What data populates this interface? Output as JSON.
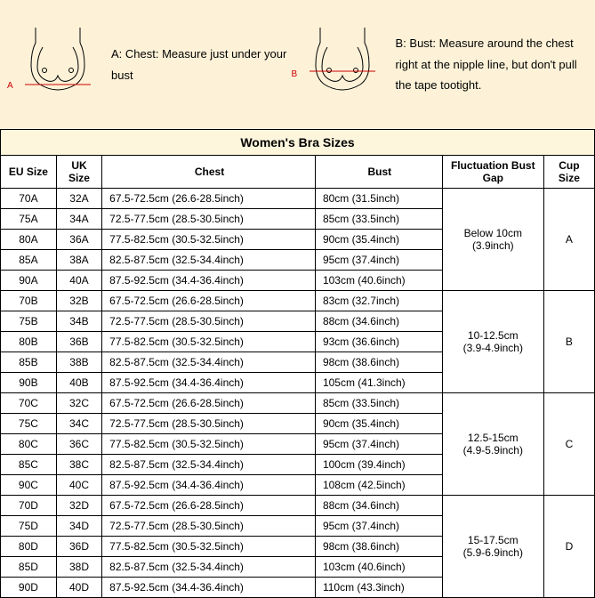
{
  "header": {
    "instruction_a_label": "A: Chest:",
    "instruction_a_text": "Measure just under your bust",
    "instruction_b_label": "B: Bust:",
    "instruction_b_text": "Measure around the chest right at the nipple line, but don't pull the tape tootight.",
    "marker_a": "A",
    "marker_b": "B"
  },
  "table": {
    "title": "Women's Bra Sizes",
    "columns": {
      "eu": "EU Size",
      "uk": "UK Size",
      "chest": "Chest",
      "bust": "Bust",
      "fluct": "Fluctuation Bust Gap",
      "cup": "Cup Size"
    },
    "groups": [
      {
        "fluctuation": "Below 10cm (3.9inch)",
        "cup": "A",
        "rows": [
          {
            "eu": "70A",
            "uk": "32A",
            "chest": "67.5-72.5cm (26.6-28.5inch)",
            "bust": "80cm (31.5inch)"
          },
          {
            "eu": "75A",
            "uk": "34A",
            "chest": "72.5-77.5cm (28.5-30.5inch)",
            "bust": "85cm (33.5inch)"
          },
          {
            "eu": "80A",
            "uk": "36A",
            "chest": "77.5-82.5cm (30.5-32.5inch)",
            "bust": "90cm (35.4inch)"
          },
          {
            "eu": "85A",
            "uk": "38A",
            "chest": "82.5-87.5cm (32.5-34.4inch)",
            "bust": "95cm (37.4inch)"
          },
          {
            "eu": "90A",
            "uk": "40A",
            "chest": "87.5-92.5cm (34.4-36.4inch)",
            "bust": "103cm (40.6inch)"
          }
        ]
      },
      {
        "fluctuation": "10-12.5cm (3.9-4.9inch)",
        "cup": "B",
        "rows": [
          {
            "eu": "70B",
            "uk": "32B",
            "chest": "67.5-72.5cm (26.6-28.5inch)",
            "bust": "83cm (32.7inch)"
          },
          {
            "eu": "75B",
            "uk": "34B",
            "chest": "72.5-77.5cm (28.5-30.5inch)",
            "bust": "88cm (34.6inch)"
          },
          {
            "eu": "80B",
            "uk": "36B",
            "chest": "77.5-82.5cm (30.5-32.5inch)",
            "bust": "93cm (36.6inch)"
          },
          {
            "eu": "85B",
            "uk": "38B",
            "chest": "82.5-87.5cm (32.5-34.4inch)",
            "bust": "98cm (38.6inch)"
          },
          {
            "eu": "90B",
            "uk": "40B",
            "chest": "87.5-92.5cm (34.4-36.4inch)",
            "bust": "105cm (41.3inch)"
          }
        ]
      },
      {
        "fluctuation": "12.5-15cm (4.9-5.9inch)",
        "cup": "C",
        "rows": [
          {
            "eu": "70C",
            "uk": "32C",
            "chest": "67.5-72.5cm (26.6-28.5inch)",
            "bust": "85cm (33.5inch)"
          },
          {
            "eu": "75C",
            "uk": "34C",
            "chest": "72.5-77.5cm (28.5-30.5inch)",
            "bust": "90cm (35.4inch)"
          },
          {
            "eu": "80C",
            "uk": "36C",
            "chest": "77.5-82.5cm (30.5-32.5inch)",
            "bust": "95cm (37.4inch)"
          },
          {
            "eu": "85C",
            "uk": "38C",
            "chest": "82.5-87.5cm (32.5-34.4inch)",
            "bust": "100cm (39.4inch)"
          },
          {
            "eu": "90C",
            "uk": "40C",
            "chest": "87.5-92.5cm (34.4-36.4inch)",
            "bust": "108cm (42.5inch)"
          }
        ]
      },
      {
        "fluctuation": "15-17.5cm (5.9-6.9inch)",
        "cup": "D",
        "rows": [
          {
            "eu": "70D",
            "uk": "32D",
            "chest": "67.5-72.5cm (26.6-28.5inch)",
            "bust": "88cm (34.6inch)"
          },
          {
            "eu": "75D",
            "uk": "34D",
            "chest": "72.5-77.5cm (28.5-30.5inch)",
            "bust": "95cm (37.4inch)"
          },
          {
            "eu": "80D",
            "uk": "36D",
            "chest": "77.5-82.5cm (30.5-32.5inch)",
            "bust": "98cm (38.6inch)"
          },
          {
            "eu": "85D",
            "uk": "38D",
            "chest": "82.5-87.5cm (32.5-34.4inch)",
            "bust": "103cm (40.6inch)"
          },
          {
            "eu": "90D",
            "uk": "40D",
            "chest": "87.5-92.5cm (34.4-36.4inch)",
            "bust": "110cm (43.3inch)"
          }
        ]
      }
    ]
  },
  "style": {
    "header_bg": "#fdf2d8",
    "title_bg": "#fdf5dc",
    "border_color": "#000000",
    "text_color": "#000000",
    "font_size_body": 12,
    "font_size_title": 14,
    "font_size_instruction": 13
  }
}
